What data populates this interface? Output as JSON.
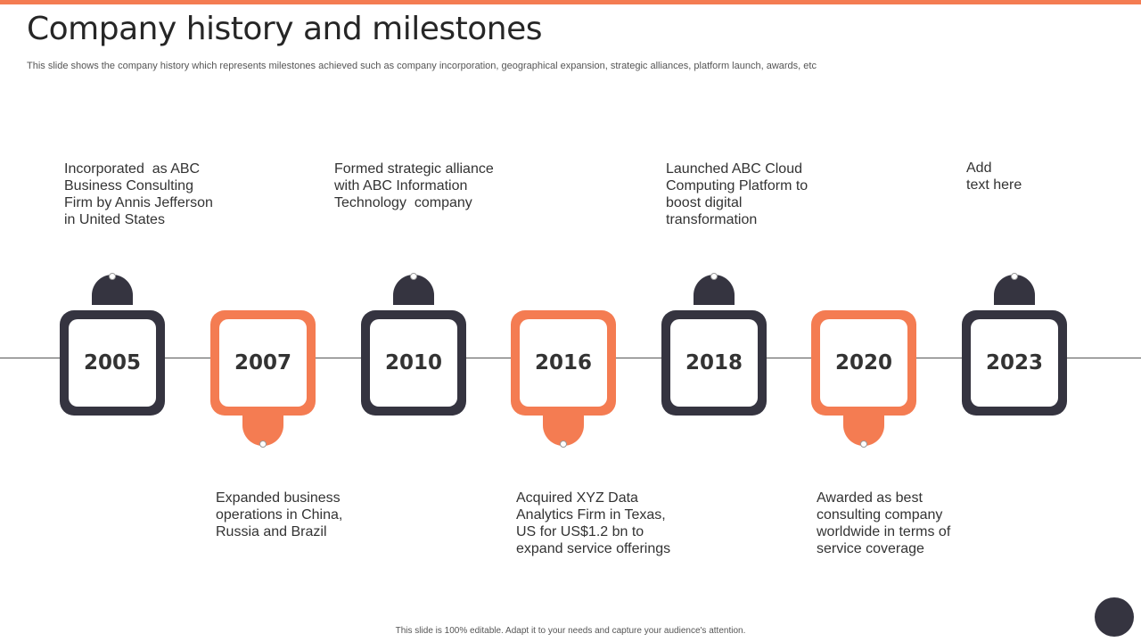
{
  "slide": {
    "title": "Company history and milestones",
    "subtitle": "This slide shows the company history which represents milestones achieved such as company incorporation, geographical expansion, strategic alliances, platform launch, awards, etc",
    "footer": "This slide is 100% editable.  Adapt it to your needs and capture your audience's attention."
  },
  "colors": {
    "accent": "#f47c52",
    "dark": "#353440"
  },
  "milestones": [
    {
      "year": "2005",
      "style": "dark",
      "position": "above",
      "lines": [
        "Incorporated  as ABC",
        "Business Consulting",
        "Firm by Annis Jefferson",
        "in United States"
      ]
    },
    {
      "year": "2007",
      "style": "orange",
      "position": "below",
      "lines": [
        "Expanded business",
        "operations in China,",
        "Russia and Brazil"
      ]
    },
    {
      "year": "2010",
      "style": "dark",
      "position": "above",
      "lines": [
        "Formed strategic alliance",
        "with ABC Information",
        "Technology  company"
      ]
    },
    {
      "year": "2016",
      "style": "orange",
      "position": "below",
      "lines": [
        "Acquired XYZ Data",
        "Analytics Firm in Texas,",
        "US for US$1.2 bn to",
        "expand service offerings"
      ]
    },
    {
      "year": "2018",
      "style": "dark",
      "position": "above",
      "lines": [
        "Launched ABC Cloud",
        "Computing Platform to",
        "boost digital",
        "transformation"
      ]
    },
    {
      "year": "2020",
      "style": "orange",
      "position": "below",
      "lines": [
        "Awarded as best",
        "consulting company",
        "worldwide in terms of",
        "service coverage"
      ]
    },
    {
      "year": "2023",
      "style": "dark",
      "position": "above",
      "lines": [
        "Add",
        "text here"
      ]
    }
  ]
}
